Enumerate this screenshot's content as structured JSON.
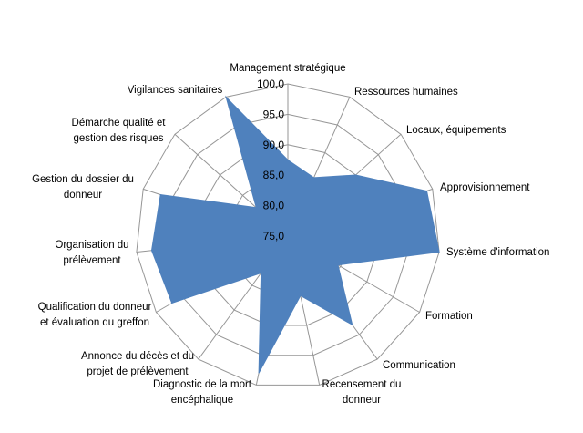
{
  "chart_data": {
    "type": "radar",
    "title": "",
    "categories": [
      [
        "Management stratégique"
      ],
      [
        "Ressources humaines"
      ],
      [
        "Locaux, équipements"
      ],
      [
        "Approvisionnement"
      ],
      [
        "Système d'information"
      ],
      [
        "Formation"
      ],
      [
        "Communication"
      ],
      [
        "Recensement du",
        "donneur"
      ],
      [
        "Diagnostic de la mort",
        "encéphalique"
      ],
      [
        "Annonce du décès et du",
        "projet de prélèvement"
      ],
      [
        "Qualification du donneur",
        "et évaluation du greffon"
      ],
      [
        "Organisation du",
        "prélèvement"
      ],
      [
        "Gestion du dossier du",
        "donneur"
      ],
      [
        "Démarche qualité et",
        "gestion des risques"
      ],
      [
        "Vigilances sanitaires"
      ]
    ],
    "series": [
      {
        "values": [
          87.5,
          85.5,
          90.0,
          99.0,
          100.0,
          84.5,
          93.0,
          85.0,
          98.0,
          82.5,
          97.0,
          97.5,
          97.0,
          82.0,
          100.0
        ]
      }
    ],
    "rlim": [
      75,
      100
    ],
    "ticks": [
      "75,0",
      "80,0",
      "85,0",
      "90,0",
      "95,0",
      "100,0"
    ],
    "grid": true,
    "fill_color": "#4f81bd",
    "grid_color": "#969696"
  }
}
